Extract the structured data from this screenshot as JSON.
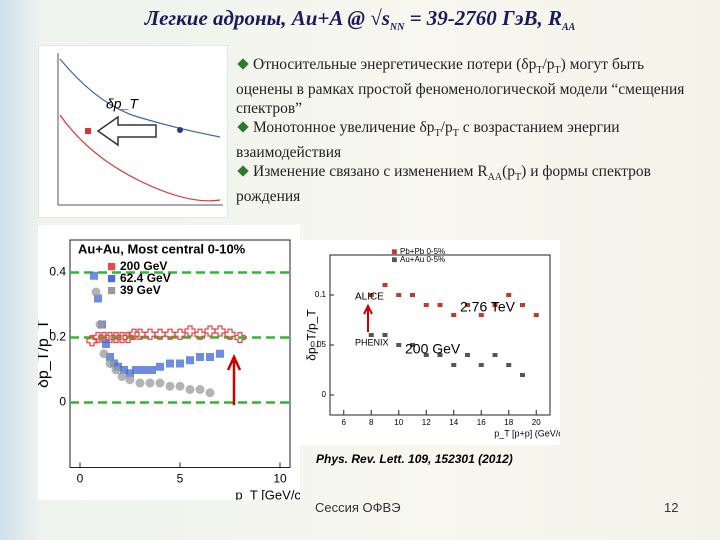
{
  "slide": {
    "title": [
      {
        "text": "Легкие адроны, Au+A @ √s"
      },
      {
        "text": "NN",
        "sub": true
      },
      {
        "text": " = 39-2760 ГэВ, R"
      },
      {
        "text": "AA",
        "sub": true
      }
    ],
    "bullets": [
      [
        {
          "text": "Относительные энергетические потери (δp"
        },
        {
          "text": "T",
          "sub": true
        },
        {
          "text": "/p"
        },
        {
          "text": "T",
          "sub": true
        },
        {
          "text": ") могут быть оценены в рамках простой феноменологической модели “смещения спектров”"
        }
      ],
      [
        {
          "text": "Монотонное увеличение δp"
        },
        {
          "text": "T",
          "sub": true
        },
        {
          "text": "/p"
        },
        {
          "text": "T",
          "sub": true
        },
        {
          "text": " с возрастанием энергии взаимодействия"
        }
      ],
      [
        {
          "text": "Изменение связано с изменением R"
        },
        {
          "text": "AA",
          "sub": true
        },
        {
          "text": "(p"
        },
        {
          "text": "T",
          "sub": true
        },
        {
          "text": ") и формы спектров рождения"
        }
      ]
    ],
    "inset_label": "δp_T",
    "reference": "Phys. Rev. Lett. 109, 152301 (2012)",
    "footer": "Сессия ОФВЭ",
    "page": "12"
  },
  "chart_data": [
    {
      "type": "scatter",
      "title": "Au+Au, Most central 0-10%",
      "x_label": "p_T [GeV/c]",
      "y_label": "δp_T/p_T",
      "xlim": [
        -0.5,
        10.5
      ],
      "xticks": [
        0,
        5,
        10
      ],
      "ylim": [
        -0.2,
        0.5
      ],
      "yticks": [
        0,
        0.2,
        0.4
      ],
      "grid": true,
      "series": [
        {
          "name": "200 GeV",
          "color": "#e84848",
          "marker": "cross",
          "x": [
            0.6,
            0.9,
            1.2,
            1.5,
            1.8,
            2.1,
            2.4,
            2.7,
            3.0,
            3.5,
            4,
            4.5,
            5,
            5.5,
            6,
            6.5,
            7,
            7.5,
            8
          ],
          "values": [
            0.19,
            0.2,
            0.2,
            0.2,
            0.2,
            0.2,
            0.2,
            0.21,
            0.21,
            0.21,
            0.21,
            0.21,
            0.21,
            0.22,
            0.21,
            0.22,
            0.22,
            0.21,
            0.2
          ]
        },
        {
          "name": "62.4 GeV",
          "color": "#4a6fd8",
          "marker": "square",
          "x": [
            0.7,
            0.9,
            1.1,
            1.3,
            1.5,
            1.7,
            1.9,
            2.2,
            2.5,
            2.8,
            3.2,
            3.6,
            4,
            4.5,
            5,
            5.5,
            6,
            6.5,
            7
          ],
          "values": [
            0.39,
            0.32,
            0.24,
            0.18,
            0.14,
            0.12,
            0.11,
            0.1,
            0.09,
            0.1,
            0.1,
            0.1,
            0.11,
            0.12,
            0.12,
            0.13,
            0.14,
            0.14,
            0.15
          ]
        },
        {
          "name": "39 GeV",
          "color": "#9a9a9a",
          "marker": "circle",
          "x": [
            0.8,
            1.0,
            1.2,
            1.5,
            1.8,
            2.1,
            2.5,
            3,
            3.5,
            4,
            4.5,
            5,
            5.5,
            6,
            6.5
          ],
          "values": [
            0.34,
            0.24,
            0.15,
            0.12,
            0.1,
            0.08,
            0.07,
            0.06,
            0.06,
            0.06,
            0.05,
            0.05,
            0.04,
            0.04,
            0.03
          ]
        }
      ]
    },
    {
      "type": "scatter",
      "x_label": "p_T [p+p] (GeV/c)",
      "y_label": "δp_T/p_T",
      "xlim": [
        5,
        21
      ],
      "xticks": [
        6,
        8,
        10,
        12,
        14,
        16,
        18,
        20
      ],
      "ylim": [
        -0.02,
        0.14
      ],
      "yticks": [
        0,
        0.05,
        0.1
      ],
      "grid": false,
      "annotations": [
        "ALICE",
        "PHENIX",
        "2.76 TeV",
        "200 GeV"
      ],
      "series": [
        {
          "name": "Pb+Pb 0-5%",
          "color": "#c0392b",
          "marker": "point",
          "x": [
            8,
            9,
            10,
            11,
            12,
            13,
            14,
            15,
            16,
            17,
            18,
            19,
            20
          ],
          "values": [
            0.1,
            0.11,
            0.1,
            0.1,
            0.09,
            0.09,
            0.08,
            0.09,
            0.08,
            0.09,
            0.1,
            0.09,
            0.08
          ]
        },
        {
          "name": "Au+Au 0-5%",
          "color": "#555555",
          "marker": "point",
          "x": [
            8,
            9,
            10,
            11,
            12,
            13,
            14,
            15,
            16,
            17,
            18,
            19
          ],
          "values": [
            0.06,
            0.06,
            0.05,
            0.05,
            0.04,
            0.04,
            0.03,
            0.04,
            0.03,
            0.04,
            0.03,
            0.02
          ]
        }
      ]
    }
  ]
}
